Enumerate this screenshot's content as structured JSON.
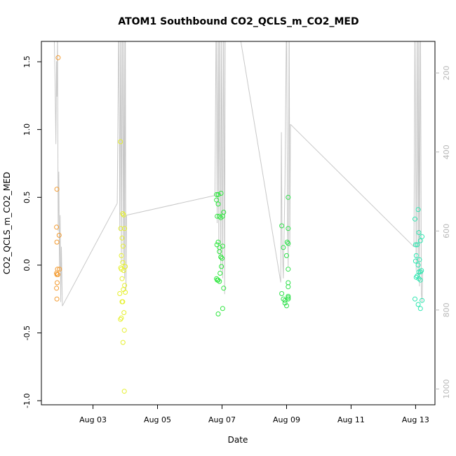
{
  "chart_data": {
    "type": "scatter",
    "title": "ATOM1 Southbound CO2_QCLS_m_CO2_MED",
    "xlabel": "Date",
    "ylabel": "CO2_QCLS_m_CO2_MED",
    "x_unit": "days (August)",
    "xlim": [
      1.4,
      13.6
    ],
    "ylim": [
      -1.03,
      1.65
    ],
    "x_ticks": [
      3,
      5,
      7,
      9,
      11,
      13
    ],
    "x_tick_labels": [
      "Aug 03",
      "Aug 05",
      "Aug 07",
      "Aug 09",
      "Aug 11",
      "Aug 13"
    ],
    "y_ticks": [
      -1.0,
      -0.5,
      0.0,
      0.5,
      1.0,
      1.5
    ],
    "y_tick_labels": [
      "-1.0",
      "-0.5",
      "0.0",
      "0.5",
      "1.0",
      "1.5"
    ],
    "right_axis": {
      "ylim": [
        1040,
        120
      ],
      "ticks": [
        200,
        400,
        600,
        800,
        1000
      ],
      "tick_labels": [
        "200",
        "400",
        "600",
        "800",
        "1000"
      ],
      "color": "#b8b8b8"
    },
    "grid": false,
    "legend": "none",
    "series": [
      {
        "color": "#f39a2e",
        "points": [
          [
            1.92,
            1.53
          ],
          [
            1.88,
            0.56
          ],
          [
            1.87,
            0.28
          ],
          [
            1.88,
            0.17
          ],
          [
            1.95,
            0.22
          ],
          [
            1.9,
            -0.03
          ],
          [
            1.87,
            -0.06
          ],
          [
            1.88,
            -0.07
          ],
          [
            1.91,
            -0.07
          ],
          [
            1.96,
            -0.03
          ],
          [
            1.89,
            -0.13
          ],
          [
            1.87,
            -0.17
          ],
          [
            1.88,
            -0.25
          ]
        ]
      },
      {
        "color": "#e6f02e",
        "points": [
          [
            3.85,
            0.91
          ],
          [
            3.92,
            0.38
          ],
          [
            3.95,
            0.37
          ],
          [
            3.86,
            0.27
          ],
          [
            3.9,
            0.2
          ],
          [
            3.98,
            0.27
          ],
          [
            3.93,
            0.14
          ],
          [
            3.88,
            0.07
          ],
          [
            3.92,
            0.02
          ],
          [
            3.86,
            -0.02
          ],
          [
            3.88,
            -0.03
          ],
          [
            3.95,
            -0.04
          ],
          [
            4.0,
            -0.01
          ],
          [
            3.9,
            -0.1
          ],
          [
            3.98,
            -0.15
          ],
          [
            3.94,
            -0.18
          ],
          [
            4.0,
            -0.2
          ],
          [
            3.83,
            -0.21
          ],
          [
            3.9,
            -0.27
          ],
          [
            3.92,
            -0.27
          ],
          [
            3.96,
            -0.35
          ],
          [
            3.88,
            -0.39
          ],
          [
            3.85,
            -0.4
          ],
          [
            3.97,
            -0.48
          ],
          [
            3.93,
            -0.57
          ],
          [
            3.97,
            -0.93
          ]
        ]
      },
      {
        "color": "#2ee63e",
        "points": [
          [
            6.83,
            0.52
          ],
          [
            6.88,
            0.52
          ],
          [
            6.97,
            0.53
          ],
          [
            6.83,
            0.48
          ],
          [
            6.88,
            0.45
          ],
          [
            7.05,
            0.39
          ],
          [
            6.85,
            0.36
          ],
          [
            6.92,
            0.36
          ],
          [
            6.96,
            0.35
          ],
          [
            7.02,
            0.36
          ],
          [
            6.88,
            0.17
          ],
          [
            6.84,
            0.15
          ],
          [
            6.92,
            0.13
          ],
          [
            7.02,
            0.14
          ],
          [
            6.92,
            0.1
          ],
          [
            6.96,
            0.06
          ],
          [
            6.97,
            0.06
          ],
          [
            7.0,
            0.05
          ],
          [
            6.98,
            -0.01
          ],
          [
            6.94,
            -0.06
          ],
          [
            6.83,
            -0.1
          ],
          [
            6.88,
            -0.11
          ],
          [
            6.85,
            -0.11
          ],
          [
            6.92,
            -0.12
          ],
          [
            7.05,
            -0.17
          ],
          [
            7.02,
            -0.32
          ],
          [
            6.88,
            -0.36
          ]
        ]
      },
      {
        "color": "#2ee04a",
        "points": [
          [
            8.85,
            0.29
          ],
          [
            9.05,
            0.5
          ],
          [
            9.05,
            0.27
          ],
          [
            9.02,
            0.17
          ],
          [
            9.05,
            0.16
          ],
          [
            8.9,
            0.13
          ],
          [
            9.0,
            0.07
          ],
          [
            9.05,
            -0.03
          ],
          [
            9.05,
            -0.13
          ],
          [
            9.05,
            -0.16
          ],
          [
            8.85,
            -0.21
          ],
          [
            9.05,
            -0.23
          ],
          [
            9.05,
            -0.24
          ],
          [
            8.9,
            -0.25
          ],
          [
            8.95,
            -0.26
          ],
          [
            9.05,
            -0.25
          ],
          [
            8.95,
            -0.28
          ],
          [
            9.0,
            -0.3
          ]
        ]
      },
      {
        "color": "#2ee6b0",
        "points": [
          [
            13.08,
            0.41
          ],
          [
            12.98,
            0.34
          ],
          [
            13.1,
            0.24
          ],
          [
            13.2,
            0.21
          ],
          [
            13.0,
            0.15
          ],
          [
            13.05,
            0.15
          ],
          [
            13.15,
            0.18
          ],
          [
            13.02,
            0.07
          ],
          [
            13.12,
            0.04
          ],
          [
            13.0,
            0.03
          ],
          [
            13.08,
            0.0
          ],
          [
            13.18,
            -0.04
          ],
          [
            13.1,
            -0.05
          ],
          [
            13.05,
            -0.08
          ],
          [
            13.15,
            -0.05
          ],
          [
            13.02,
            -0.09
          ],
          [
            13.1,
            -0.1
          ],
          [
            13.15,
            -0.11
          ],
          [
            12.98,
            -0.25
          ],
          [
            13.2,
            -0.26
          ],
          [
            13.08,
            -0.29
          ],
          [
            13.15,
            -0.32
          ]
        ]
      }
    ],
    "trace": {
      "color": "#c8c8c8",
      "axis": "right",
      "segments": [
        [
          [
            1.78,
            30
          ],
          [
            1.82,
            200
          ],
          [
            1.85,
            380
          ],
          [
            1.87,
            170
          ],
          [
            1.88,
            260
          ],
          [
            1.9,
            100
          ],
          [
            1.92,
            600
          ],
          [
            1.94,
            450
          ],
          [
            1.96,
            700
          ],
          [
            1.98,
            560
          ],
          [
            2.0,
            780
          ],
          [
            2.02,
            640
          ],
          [
            2.05,
            790
          ]
        ],
        [
          [
            2.05,
            790
          ],
          [
            3.75,
            530
          ]
        ],
        [
          [
            3.75,
            530
          ],
          [
            3.8,
            30
          ],
          [
            3.83,
            600
          ],
          [
            3.86,
            40
          ],
          [
            3.88,
            680
          ],
          [
            3.91,
            30
          ],
          [
            3.94,
            700
          ],
          [
            3.96,
            50
          ],
          [
            3.98,
            720
          ],
          [
            4.0,
            40
          ],
          [
            4.02,
            750
          ],
          [
            4.04,
            560
          ]
        ],
        [
          [
            4.04,
            560
          ],
          [
            6.78,
            510
          ]
        ],
        [
          [
            6.78,
            510
          ],
          [
            6.82,
            30
          ],
          [
            6.85,
            580
          ],
          [
            6.88,
            40
          ],
          [
            6.9,
            660
          ],
          [
            6.93,
            30
          ],
          [
            6.96,
            700
          ],
          [
            6.99,
            40
          ],
          [
            7.02,
            720
          ],
          [
            7.05,
            30
          ],
          [
            7.08,
            760
          ],
          [
            7.1,
            40
          ]
        ],
        [
          [
            7.4,
            30
          ],
          [
            8.82,
            730
          ]
        ],
        [
          [
            8.82,
            730
          ],
          [
            8.84,
            350
          ],
          [
            8.86,
            620
          ],
          [
            8.9,
            720
          ],
          [
            8.95,
            480
          ],
          [
            9.0,
            30
          ],
          [
            9.03,
            600
          ],
          [
            9.05,
            690
          ],
          [
            9.08,
            40
          ],
          [
            9.1,
            640
          ],
          [
            9.12,
            330
          ]
        ],
        [
          [
            9.12,
            330
          ],
          [
            12.95,
            640
          ]
        ],
        [
          [
            12.95,
            640
          ],
          [
            12.98,
            30
          ],
          [
            13.02,
            700
          ],
          [
            13.05,
            30
          ],
          [
            13.08,
            720
          ],
          [
            13.1,
            40
          ],
          [
            13.12,
            740
          ],
          [
            13.15,
            30
          ],
          [
            13.18,
            760
          ],
          [
            13.2,
            780
          ],
          [
            13.22,
            700
          ]
        ]
      ]
    }
  }
}
